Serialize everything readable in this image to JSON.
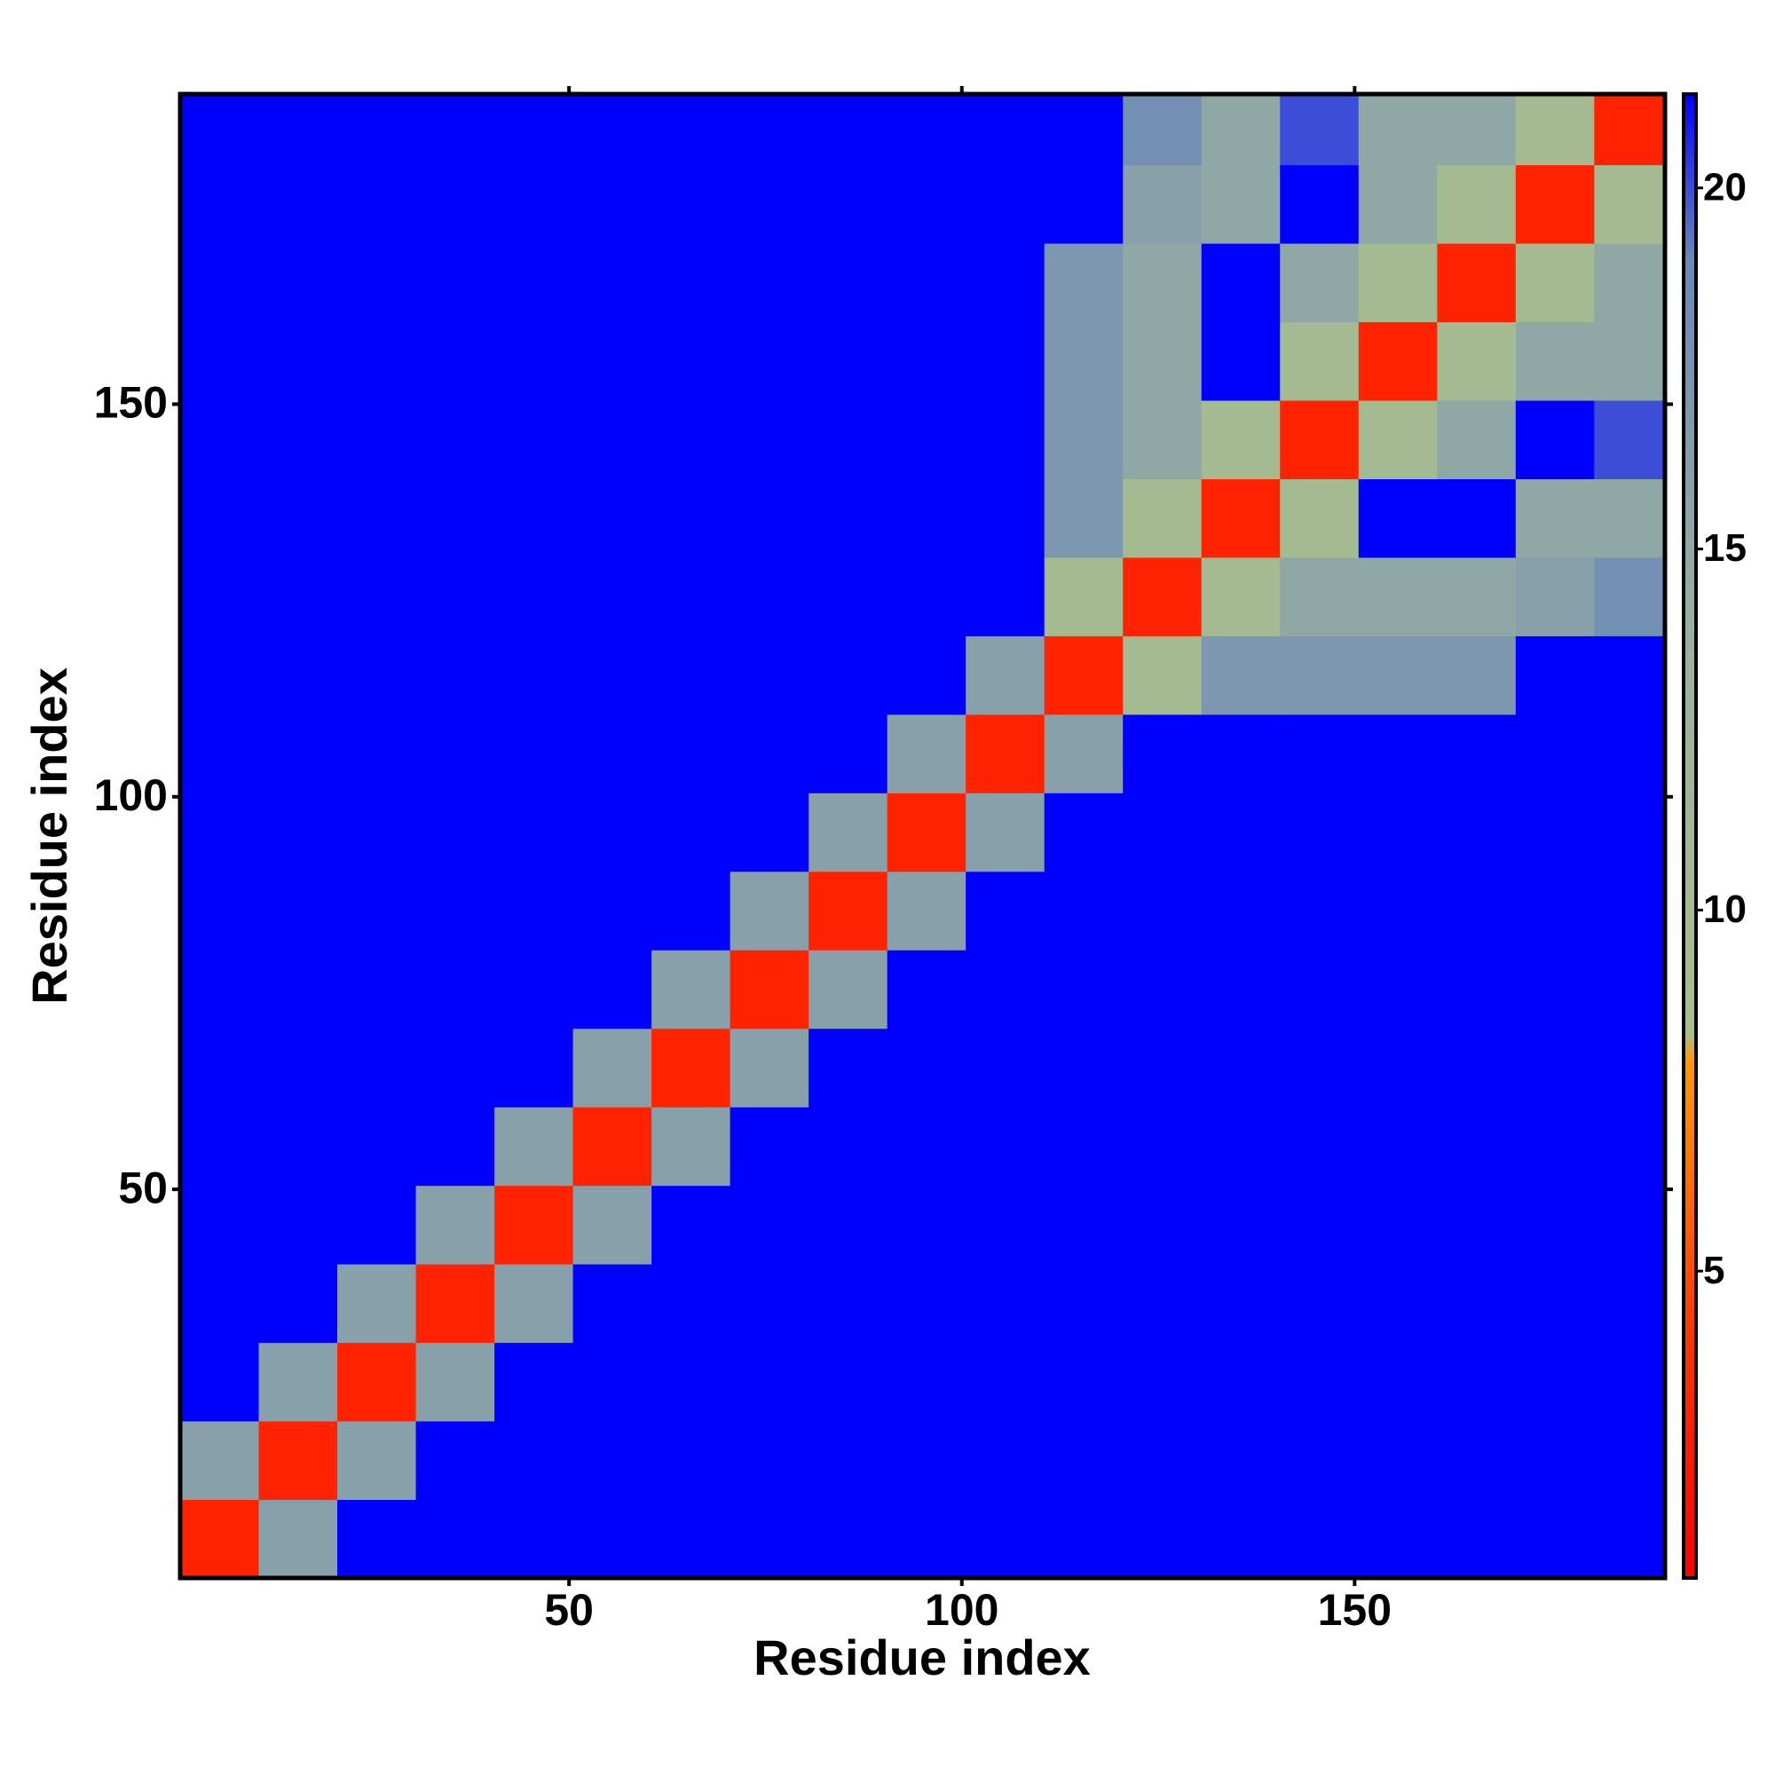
{
  "chart_data": {
    "type": "heatmap",
    "xlabel": "Residue index",
    "ylabel": "Residue index",
    "x_bins": [
      0.5,
      10.5,
      20.5,
      30.5,
      40.5,
      50.5,
      60.5,
      70.5,
      80.5,
      90.5,
      100.5,
      110.5,
      120.5,
      130.5,
      140.5,
      150.5,
      160.5,
      170.5,
      180.5,
      189.5
    ],
    "y_bins": [
      0.5,
      10.5,
      20.5,
      30.5,
      40.5,
      50.5,
      60.5,
      70.5,
      80.5,
      90.5,
      100.5,
      110.5,
      120.5,
      130.5,
      140.5,
      150.5,
      160.5,
      170.5,
      180.5,
      189.5
    ],
    "z": [
      [
        3,
        16,
        25,
        25,
        25,
        25,
        25,
        25,
        25,
        25,
        25,
        25,
        25,
        25,
        25,
        25,
        25,
        25,
        25
      ],
      [
        16,
        3,
        16,
        25,
        25,
        25,
        25,
        25,
        25,
        25,
        25,
        25,
        25,
        25,
        25,
        25,
        25,
        25,
        25
      ],
      [
        25,
        16,
        3,
        16,
        25,
        25,
        25,
        25,
        25,
        25,
        25,
        25,
        25,
        25,
        25,
        25,
        25,
        25,
        25
      ],
      [
        25,
        25,
        16,
        3,
        16,
        25,
        25,
        25,
        25,
        25,
        25,
        25,
        25,
        25,
        25,
        25,
        25,
        25,
        25
      ],
      [
        25,
        25,
        25,
        16,
        3,
        16,
        25,
        25,
        25,
        25,
        25,
        25,
        25,
        25,
        25,
        25,
        25,
        25,
        25
      ],
      [
        25,
        25,
        25,
        25,
        16,
        3,
        16,
        25,
        25,
        25,
        25,
        25,
        25,
        25,
        25,
        25,
        25,
        25,
        25
      ],
      [
        25,
        25,
        25,
        25,
        25,
        16,
        3,
        16,
        25,
        25,
        25,
        25,
        25,
        25,
        25,
        25,
        25,
        25,
        25
      ],
      [
        25,
        25,
        25,
        25,
        25,
        25,
        16,
        3,
        16,
        25,
        25,
        25,
        25,
        25,
        25,
        25,
        25,
        25,
        25
      ],
      [
        25,
        25,
        25,
        25,
        25,
        25,
        25,
        16,
        3,
        16,
        25,
        25,
        25,
        25,
        25,
        25,
        25,
        25,
        25
      ],
      [
        25,
        25,
        25,
        25,
        25,
        25,
        25,
        25,
        16,
        3,
        16,
        25,
        25,
        25,
        25,
        25,
        25,
        25,
        25
      ],
      [
        25,
        25,
        25,
        25,
        25,
        25,
        25,
        25,
        25,
        16,
        3,
        16,
        25,
        25,
        25,
        25,
        25,
        25,
        25
      ],
      [
        25,
        25,
        25,
        25,
        25,
        25,
        25,
        25,
        25,
        25,
        16,
        3,
        10,
        17,
        17,
        17,
        17,
        25,
        25
      ],
      [
        25,
        25,
        25,
        25,
        25,
        25,
        25,
        25,
        25,
        25,
        25,
        10,
        3,
        10,
        15,
        15,
        15,
        16,
        18
      ],
      [
        25,
        25,
        25,
        25,
        25,
        25,
        25,
        25,
        25,
        25,
        25,
        17,
        10,
        3,
        10,
        25,
        25,
        15,
        15
      ],
      [
        25,
        25,
        25,
        25,
        25,
        25,
        25,
        25,
        25,
        25,
        25,
        17,
        15,
        10,
        3,
        10,
        15,
        25,
        20
      ],
      [
        25,
        25,
        25,
        25,
        25,
        25,
        25,
        25,
        25,
        25,
        25,
        17,
        15,
        25,
        10,
        3,
        10,
        15,
        15
      ],
      [
        25,
        25,
        25,
        25,
        25,
        25,
        25,
        25,
        25,
        25,
        25,
        17,
        15,
        25,
        15,
        10,
        3,
        10,
        15
      ],
      [
        25,
        25,
        25,
        25,
        25,
        25,
        25,
        25,
        25,
        25,
        25,
        25,
        16,
        15,
        25,
        15,
        10,
        3,
        10
      ],
      [
        25,
        25,
        25,
        25,
        25,
        25,
        25,
        25,
        25,
        25,
        25,
        25,
        18,
        15,
        20,
        15,
        15,
        10,
        3
      ]
    ],
    "xlim": [
      0.5,
      189.5
    ],
    "ylim": [
      0.5,
      189.5
    ],
    "xticks": [
      50,
      100,
      150
    ],
    "yticks": [
      50,
      100,
      150
    ],
    "colorscale": [
      [
        0.75,
        "#ff0000"
      ],
      [
        4,
        "#ff3300"
      ],
      [
        7.9,
        "#ff9900"
      ],
      [
        8.3,
        "#a8c08c"
      ],
      [
        14,
        "#9ab0a0"
      ],
      [
        19,
        "#6a88b8"
      ],
      [
        21.3,
        "#0000ff"
      ]
    ],
    "clim": [
      0.75,
      21.3
    ],
    "cticks": [
      5,
      10,
      15,
      20
    ]
  }
}
